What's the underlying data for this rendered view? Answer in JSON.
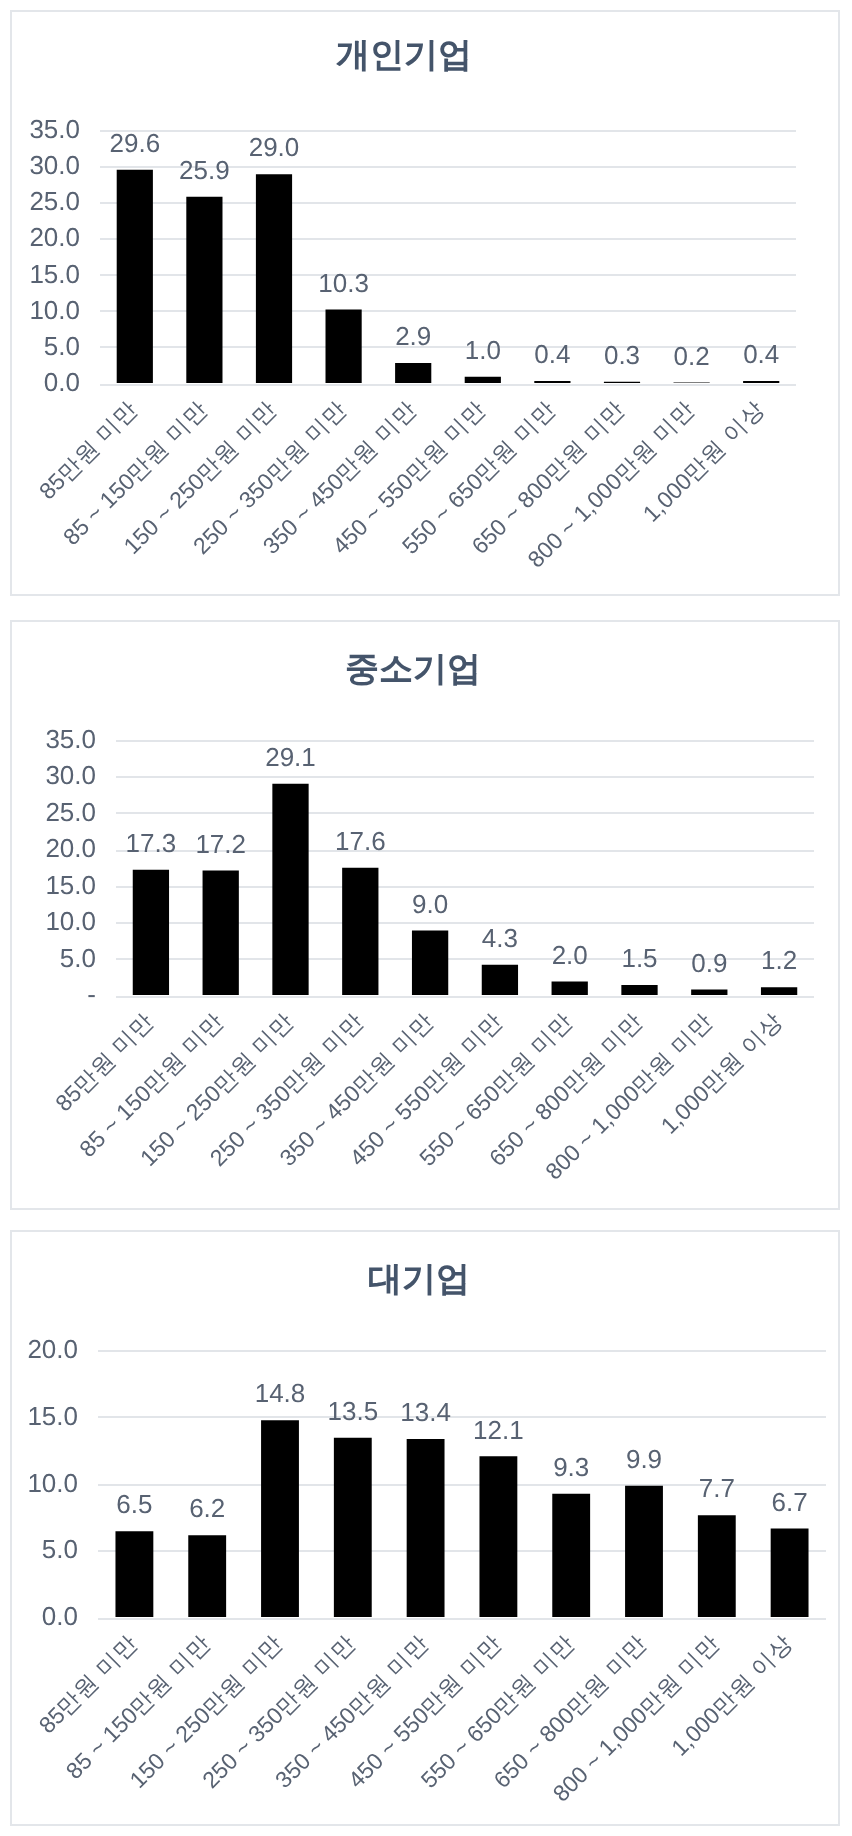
{
  "chart_data": [
    {
      "type": "bar",
      "title": "개인기업",
      "categories": [
        "85만원 미만",
        "85 ~ 150만원 미만",
        "150 ~ 250만원 미만",
        "250 ~ 350만원 미만",
        "350 ~ 450만원 미만",
        "450 ~ 550만원 미만",
        "550 ~ 650만원 미만",
        "650 ~ 800만원 미만",
        "800 ~ 1,000만원 미만",
        "1,000만원 이상"
      ],
      "values": [
        29.6,
        25.9,
        29.0,
        10.3,
        2.9,
        1.0,
        0.4,
        0.3,
        0.2,
        0.4
      ],
      "value_labels": [
        "29.6",
        "25.9",
        "29.0",
        "10.3",
        "2.9",
        "1.0",
        "0.4",
        "0.3",
        "0.2",
        "0.4"
      ],
      "color": "#000000",
      "ylim": [
        0,
        35
      ],
      "yticks": [
        {
          "value": 0,
          "label": "0.0"
        },
        {
          "value": 5,
          "label": "5.0"
        },
        {
          "value": 10,
          "label": "10.0"
        },
        {
          "value": 15,
          "label": "15.0"
        },
        {
          "value": 20,
          "label": "20.0"
        },
        {
          "value": 25,
          "label": "25.0"
        },
        {
          "value": 30,
          "label": "30.0"
        },
        {
          "value": 35,
          "label": "35.0"
        }
      ],
      "grid": "y"
    },
    {
      "type": "bar",
      "title": "중소기업",
      "categories": [
        "85만원 미만",
        "85 ~ 150만원 미만",
        "150 ~ 250만원 미만",
        "250 ~ 350만원 미만",
        "350 ~ 450만원 미만",
        "450 ~ 550만원 미만",
        "550 ~ 650만원 미만",
        "650 ~ 800만원 미만",
        "800 ~ 1,000만원 미만",
        "1,000만원 이상"
      ],
      "values": [
        17.3,
        17.2,
        29.1,
        17.6,
        9.0,
        4.3,
        2.0,
        1.5,
        0.9,
        1.2
      ],
      "value_labels": [
        "17.3",
        "17.2",
        "29.1",
        "17.6",
        "9.0",
        "4.3",
        "2.0",
        "1.5",
        "0.9",
        "1.2"
      ],
      "color": "#000000",
      "ylim": [
        0,
        35
      ],
      "yticks": [
        {
          "value": 0,
          "label": "-"
        },
        {
          "value": 5,
          "label": "5.0"
        },
        {
          "value": 10,
          "label": "10.0"
        },
        {
          "value": 15,
          "label": "15.0"
        },
        {
          "value": 20,
          "label": "20.0"
        },
        {
          "value": 25,
          "label": "25.0"
        },
        {
          "value": 30,
          "label": "30.0"
        },
        {
          "value": 35,
          "label": "35.0"
        }
      ],
      "grid": "y"
    },
    {
      "type": "bar",
      "title": "대기업",
      "categories": [
        "85만원 미만",
        "85 ~ 150만원 미만",
        "150 ~ 250만원 미만",
        "250 ~ 350만원 미만",
        "350 ~ 450만원 미만",
        "450 ~ 550만원 미만",
        "550 ~ 650만원 미만",
        "650 ~ 800만원 미만",
        "800 ~ 1,000만원 미만",
        "1,000만원 이상"
      ],
      "values": [
        6.5,
        6.2,
        14.8,
        13.5,
        13.4,
        12.1,
        9.3,
        9.9,
        7.7,
        6.7
      ],
      "value_labels": [
        "6.5",
        "6.2",
        "14.8",
        "13.5",
        "13.4",
        "12.1",
        "9.3",
        "9.9",
        "7.7",
        "6.7"
      ],
      "color": "#000000",
      "ylim": [
        0,
        20
      ],
      "yticks": [
        {
          "value": 0,
          "label": "0.0"
        },
        {
          "value": 5,
          "label": "5.0"
        },
        {
          "value": 10,
          "label": "10.0"
        },
        {
          "value": 15,
          "label": "15.0"
        },
        {
          "value": 20,
          "label": "20.0"
        }
      ],
      "grid": "y"
    }
  ]
}
